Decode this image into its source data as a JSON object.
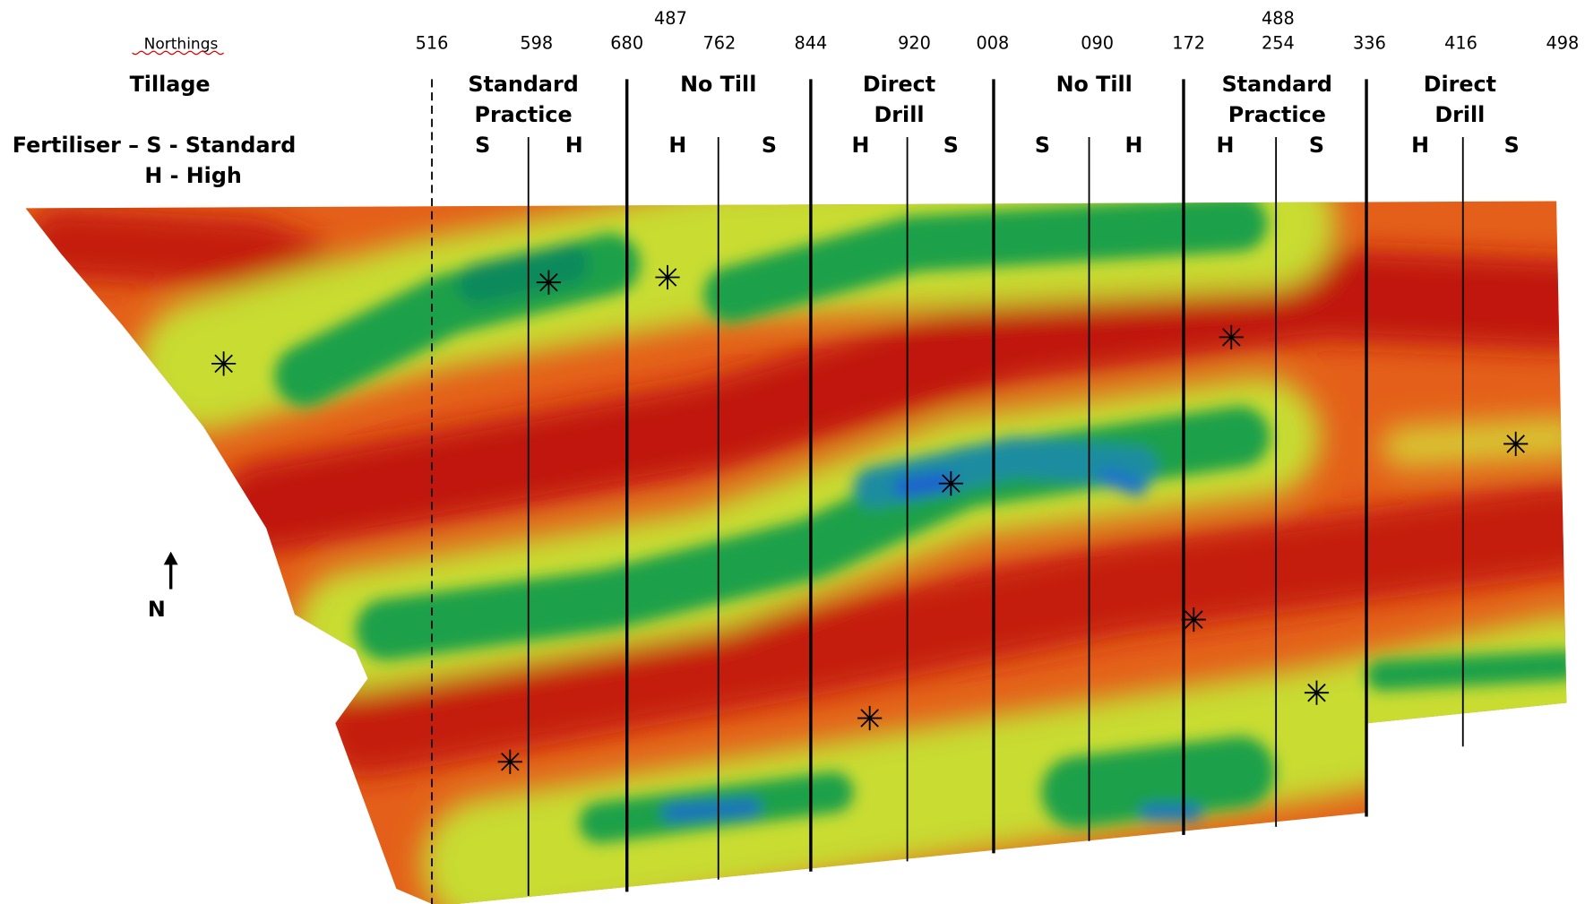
{
  "header": {
    "northings_label": "Northings",
    "northing_prefixes": [
      "487",
      "488"
    ],
    "northings": [
      "516",
      "598",
      "680",
      "762",
      "844",
      "920",
      "008",
      "090",
      "172",
      "254",
      "336",
      "416",
      "498"
    ]
  },
  "tillage": {
    "label": "Tillage",
    "blocks": [
      [
        "Standard",
        "Practice"
      ],
      [
        "No Till"
      ],
      [
        "Direct",
        "Drill"
      ],
      [
        "No Till"
      ],
      [
        "Standard",
        "Practice"
      ],
      [
        "Direct",
        "Drill"
      ]
    ]
  },
  "fertiliser": {
    "label": "Fertiliser – S - Standard",
    "label_2": "H - High",
    "codes": [
      "S",
      "H",
      "H",
      "S",
      "H",
      "S",
      "S",
      "H",
      "H",
      "S",
      "H",
      "S"
    ]
  },
  "compass": "N"
}
